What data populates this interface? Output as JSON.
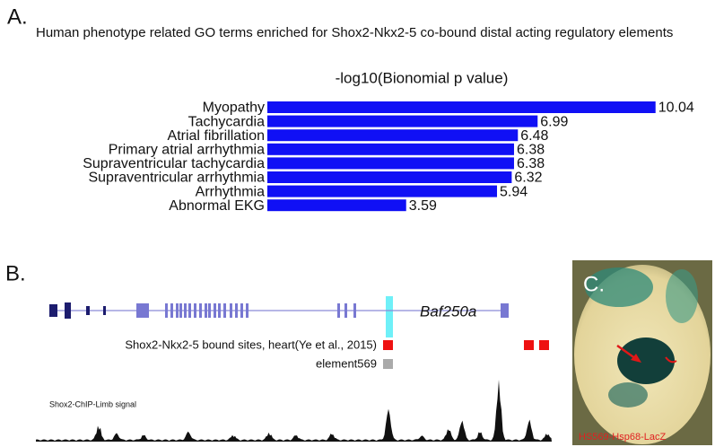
{
  "panel_a": {
    "label": "A."
  },
  "chart_data": {
    "type": "bar",
    "orientation": "horizontal",
    "title": "Human phenotype related GO terms enriched for Shox2-Nkx2-5 co-bound distal acting regulatory elements",
    "x_label": "-log10(Bionomial p value)",
    "categories": [
      "Myopathy",
      "Tachycardia",
      "Atrial fibrillation",
      "Primary atrial arrhythmia",
      "Supraventricular tachycardia",
      "Supraventricular arrhythmia",
      "Arrhythmia",
      "Abnormal EKG"
    ],
    "values": [
      10.04,
      6.99,
      6.48,
      6.38,
      6.38,
      6.32,
      5.94,
      3.59
    ],
    "color": "#1010f5"
  },
  "panel_b": {
    "label": "B.",
    "gene": "Baf250a",
    "track_bound_sites": "Shox2-Nkx2-5 bound sites, heart(Ye et al., 2015)",
    "track_element": "element569",
    "track_signal": "Shox2-ChIP-Limb signal"
  },
  "panel_c": {
    "label": "C.",
    "caption": "HS569-Hsp68-LacZ"
  }
}
